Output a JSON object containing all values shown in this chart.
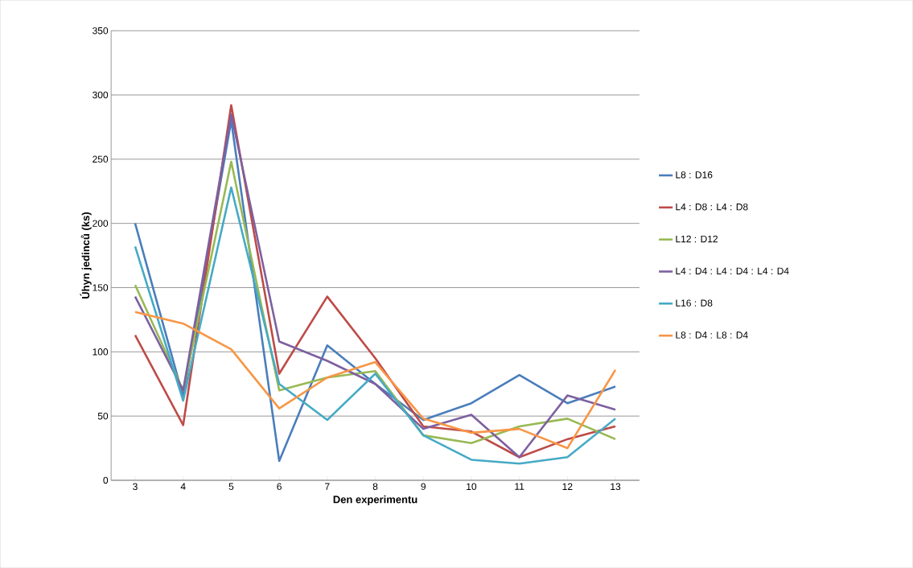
{
  "chart_data": {
    "type": "line",
    "xlabel": "Den experimentu",
    "ylabel": "Úhyn jedinců (ks)",
    "categories": [
      "3",
      "4",
      "5",
      "6",
      "7",
      "8",
      "9",
      "10",
      "11",
      "12",
      "13"
    ],
    "ylim": [
      0,
      350
    ],
    "yticks": [
      0,
      50,
      100,
      150,
      200,
      250,
      300,
      350
    ],
    "grid": "y",
    "legend": "right",
    "marker": "none",
    "line_style": "solid",
    "series": [
      {
        "name": "L8 : D16",
        "color": "#4a7ebb",
        "values": [
          200,
          65,
          280,
          15,
          105,
          75,
          47,
          60,
          82,
          60,
          73
        ]
      },
      {
        "name": "L4 : D8 : L4 : D8",
        "color": "#be4b48",
        "values": [
          113,
          43,
          292,
          83,
          143,
          95,
          42,
          38,
          18,
          32,
          42
        ]
      },
      {
        "name": "L12 : D12",
        "color": "#98b954",
        "values": [
          152,
          70,
          248,
          70,
          80,
          85,
          35,
          29,
          42,
          48,
          32
        ]
      },
      {
        "name": "L4 : D4 : L4 : D4 : L4 : D4",
        "color": "#7d60a0",
        "values": [
          143,
          70,
          285,
          108,
          93,
          75,
          40,
          51,
          18,
          66,
          55
        ]
      },
      {
        "name": "L16 : D8",
        "color": "#46aac5",
        "values": [
          182,
          62,
          228,
          75,
          47,
          83,
          35,
          16,
          13,
          18,
          48
        ]
      },
      {
        "name": "L8 : D4 : L8 : D4",
        "color": "#f79646",
        "values": [
          131,
          122,
          102,
          56,
          80,
          92,
          48,
          37,
          40,
          25,
          86
        ]
      }
    ]
  }
}
